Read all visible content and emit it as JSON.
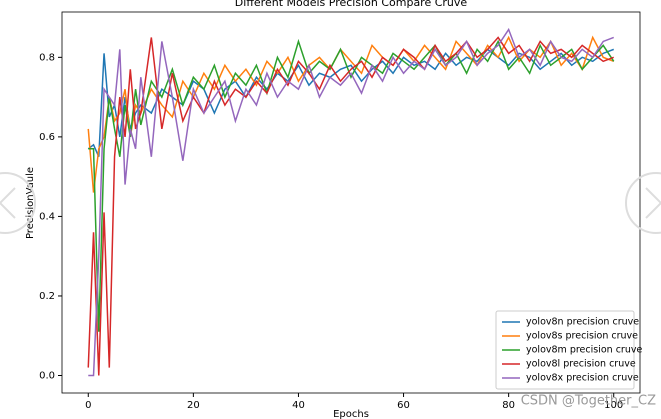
{
  "chart_data": {
    "type": "line",
    "title": "Different Models Precision Compare Cruve",
    "x_label": "Epochs",
    "y_label": "PrecisionVaule",
    "watermark": "CSDN @Together_CZ",
    "x": [
      0,
      1,
      2,
      3,
      4,
      5,
      6,
      7,
      8,
      9,
      10,
      12,
      14,
      16,
      18,
      20,
      22,
      24,
      26,
      28,
      30,
      32,
      34,
      36,
      38,
      40,
      42,
      44,
      46,
      48,
      50,
      52,
      54,
      56,
      58,
      60,
      62,
      64,
      66,
      68,
      70,
      72,
      74,
      76,
      78,
      80,
      82,
      84,
      86,
      88,
      90,
      92,
      94,
      96,
      98,
      100
    ],
    "series": [
      {
        "name": "yolov8n precision cruve",
        "color": "#1f77b4",
        "values": [
          0.57,
          0.58,
          0.55,
          0.81,
          0.65,
          0.68,
          0.6,
          0.7,
          0.62,
          0.66,
          0.68,
          0.66,
          0.72,
          0.7,
          0.68,
          0.74,
          0.72,
          0.66,
          0.72,
          0.74,
          0.7,
          0.75,
          0.72,
          0.76,
          0.74,
          0.78,
          0.73,
          0.76,
          0.75,
          0.77,
          0.78,
          0.74,
          0.77,
          0.79,
          0.76,
          0.8,
          0.78,
          0.79,
          0.77,
          0.81,
          0.78,
          0.8,
          0.79,
          0.82,
          0.8,
          0.78,
          0.81,
          0.8,
          0.77,
          0.79,
          0.81,
          0.78,
          0.8,
          0.79,
          0.81,
          0.82
        ]
      },
      {
        "name": "yolov8s precision cruve",
        "color": "#ff7f0e",
        "values": [
          0.62,
          0.46,
          0.57,
          0.6,
          0.7,
          0.64,
          0.66,
          0.72,
          0.6,
          0.68,
          0.66,
          0.72,
          0.68,
          0.65,
          0.74,
          0.7,
          0.76,
          0.72,
          0.78,
          0.74,
          0.77,
          0.73,
          0.79,
          0.76,
          0.8,
          0.74,
          0.78,
          0.8,
          0.77,
          0.82,
          0.79,
          0.76,
          0.83,
          0.8,
          0.78,
          0.82,
          0.79,
          0.83,
          0.8,
          0.77,
          0.84,
          0.81,
          0.78,
          0.83,
          0.8,
          0.85,
          0.79,
          0.82,
          0.8,
          0.84,
          0.78,
          0.81,
          0.77,
          0.85,
          0.8,
          0.79
        ]
      },
      {
        "name": "yolov8m precision cruve",
        "color": "#2ca02c",
        "values": [
          0.57,
          0.57,
          0.11,
          0.57,
          0.7,
          0.62,
          0.55,
          0.68,
          0.6,
          0.72,
          0.63,
          0.74,
          0.7,
          0.77,
          0.68,
          0.75,
          0.72,
          0.78,
          0.7,
          0.76,
          0.73,
          0.78,
          0.71,
          0.8,
          0.75,
          0.84,
          0.76,
          0.79,
          0.77,
          0.82,
          0.75,
          0.8,
          0.78,
          0.76,
          0.81,
          0.79,
          0.77,
          0.8,
          0.83,
          0.78,
          0.81,
          0.76,
          0.82,
          0.79,
          0.84,
          0.77,
          0.8,
          0.76,
          0.83,
          0.78,
          0.8,
          0.82,
          0.77,
          0.8,
          0.83,
          0.79
        ]
      },
      {
        "name": "yolov8l precision cruve",
        "color": "#d62728",
        "values": [
          0.02,
          0.36,
          0.0,
          0.41,
          0.02,
          0.55,
          0.7,
          0.6,
          0.77,
          0.62,
          0.66,
          0.85,
          0.62,
          0.76,
          0.64,
          0.7,
          0.66,
          0.74,
          0.68,
          0.72,
          0.7,
          0.74,
          0.71,
          0.77,
          0.73,
          0.79,
          0.76,
          0.72,
          0.78,
          0.74,
          0.77,
          0.79,
          0.75,
          0.8,
          0.78,
          0.82,
          0.8,
          0.77,
          0.83,
          0.79,
          0.81,
          0.84,
          0.8,
          0.82,
          0.85,
          0.81,
          0.83,
          0.79,
          0.84,
          0.81,
          0.82,
          0.8,
          0.83,
          0.81,
          0.79,
          0.8
        ]
      },
      {
        "name": "yolov8x precision cruve",
        "color": "#9467bd",
        "values": [
          0.0,
          0.0,
          0.3,
          0.72,
          0.7,
          0.68,
          0.82,
          0.48,
          0.62,
          0.57,
          0.75,
          0.55,
          0.84,
          0.7,
          0.54,
          0.72,
          0.66,
          0.7,
          0.74,
          0.64,
          0.72,
          0.68,
          0.76,
          0.7,
          0.74,
          0.72,
          0.78,
          0.7,
          0.75,
          0.73,
          0.76,
          0.71,
          0.78,
          0.74,
          0.8,
          0.76,
          0.79,
          0.77,
          0.82,
          0.78,
          0.8,
          0.84,
          0.78,
          0.81,
          0.83,
          0.87,
          0.8,
          0.82,
          0.78,
          0.84,
          0.8,
          0.79,
          0.82,
          0.8,
          0.84,
          0.85
        ]
      }
    ],
    "xlim": [
      -5,
      105
    ],
    "ylim": [
      -0.044,
      0.914
    ],
    "xticks": [
      0,
      20,
      40,
      60,
      80,
      100
    ],
    "yticks": [
      {
        "value": 0,
        "label": "0.0"
      },
      {
        "value": 0.2,
        "label": "0.2"
      },
      {
        "value": 0.4,
        "label": "0.4"
      },
      {
        "value": 0.6,
        "label": "0.6"
      },
      {
        "value": 0.8,
        "label": "0.8"
      }
    ],
    "grid": false,
    "legend": "lower right"
  }
}
